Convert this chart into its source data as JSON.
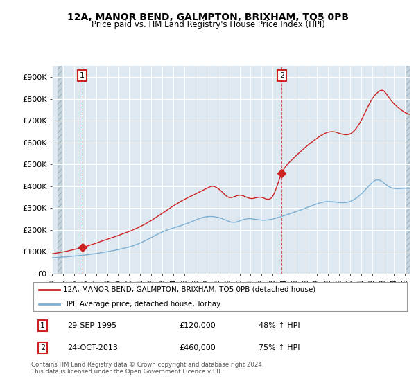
{
  "title": "12A, MANOR BEND, GALMPTON, BRIXHAM, TQ5 0PB",
  "subtitle": "Price paid vs. HM Land Registry's House Price Index (HPI)",
  "ylabel_ticks": [
    "£0",
    "£100K",
    "£200K",
    "£300K",
    "£400K",
    "£500K",
    "£600K",
    "£700K",
    "£800K",
    "£900K"
  ],
  "ytick_values": [
    0,
    100000,
    200000,
    300000,
    400000,
    500000,
    600000,
    700000,
    800000,
    900000
  ],
  "ylim": [
    0,
    950000
  ],
  "xlim_start": 1993.5,
  "xlim_end": 2025.5,
  "hpi_color": "#7bafd4",
  "price_color": "#cc2222",
  "bg_color": "#dde8f0",
  "grid_color": "#ffffff",
  "hatch_left_color": "#c8d8e0",
  "sale1_x": 1995.75,
  "sale1_y": 120000,
  "sale2_x": 2013.82,
  "sale2_y": 460000,
  "legend_label1": "12A, MANOR BEND, GALMPTON, BRIXHAM, TQ5 0PB (detached house)",
  "legend_label2": "HPI: Average price, detached house, Torbay",
  "annotation1_label": "1",
  "annotation2_label": "2",
  "table_row1": [
    "1",
    "29-SEP-1995",
    "£120,000",
    "48% ↑ HPI"
  ],
  "table_row2": [
    "2",
    "24-OCT-2013",
    "£460,000",
    "75% ↑ HPI"
  ],
  "footer": "Contains HM Land Registry data © Crown copyright and database right 2024.\nThis data is licensed under the Open Government Licence v3.0.",
  "xtick_years": [
    1993,
    1994,
    1995,
    1996,
    1997,
    1998,
    1999,
    2000,
    2001,
    2002,
    2003,
    2004,
    2005,
    2006,
    2007,
    2008,
    2009,
    2010,
    2011,
    2012,
    2013,
    2014,
    2015,
    2016,
    2017,
    2018,
    2019,
    2020,
    2021,
    2022,
    2023,
    2024,
    2025
  ]
}
